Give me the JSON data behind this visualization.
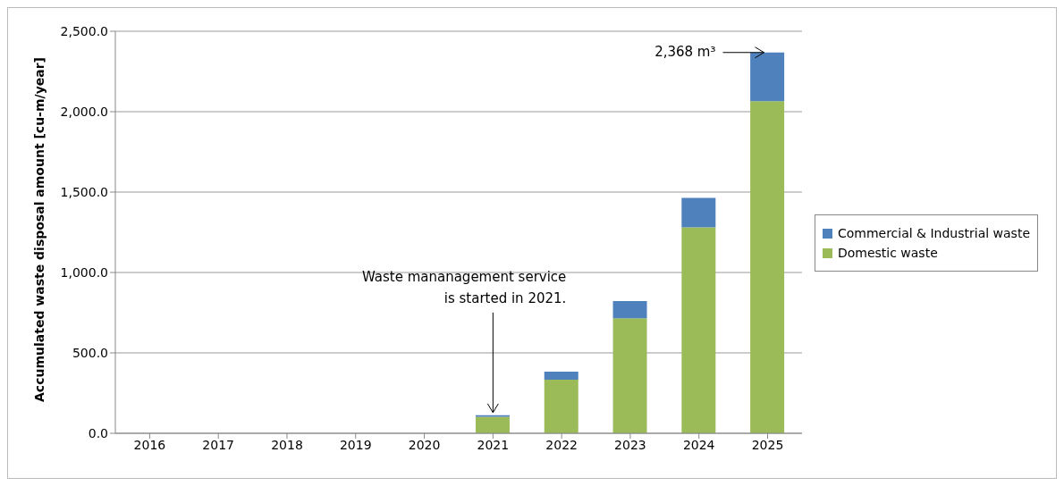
{
  "chart_data": {
    "type": "bar",
    "stacked": true,
    "ylabel": "Accumulated waste disposal amount [cu-m/year]",
    "categories": [
      "2016",
      "2017",
      "2018",
      "2019",
      "2020",
      "2021",
      "2022",
      "2023",
      "2024",
      "2025"
    ],
    "series": [
      {
        "name": "Domestic waste",
        "color": "#9bbb59",
        "values": [
          0,
          0,
          0,
          0,
          0,
          103,
          333,
          715,
          1280,
          2065
        ]
      },
      {
        "name": "Commercial & Industrial waste",
        "color": "#4f81bd",
        "values": [
          0,
          0,
          0,
          0,
          0,
          9,
          51,
          107,
          184,
          303
        ]
      }
    ],
    "ylim": [
      0,
      2500
    ],
    "yticks": [
      {
        "value": 0,
        "label": "0.0"
      },
      {
        "value": 500,
        "label": "500.0"
      },
      {
        "value": 1000,
        "label": "1,000.0"
      },
      {
        "value": 1500,
        "label": "1,500.0"
      },
      {
        "value": 2000,
        "label": "2,000.0"
      },
      {
        "value": 2500,
        "label": "2,500.0"
      }
    ],
    "grid": "y",
    "legend": "right",
    "annotations": [
      {
        "text": "2,368 m³",
        "x": "2025",
        "y": 2368
      },
      {
        "text": "Waste mananagement service\nis started in 2021.",
        "x": "2021",
        "y": 112
      }
    ]
  }
}
